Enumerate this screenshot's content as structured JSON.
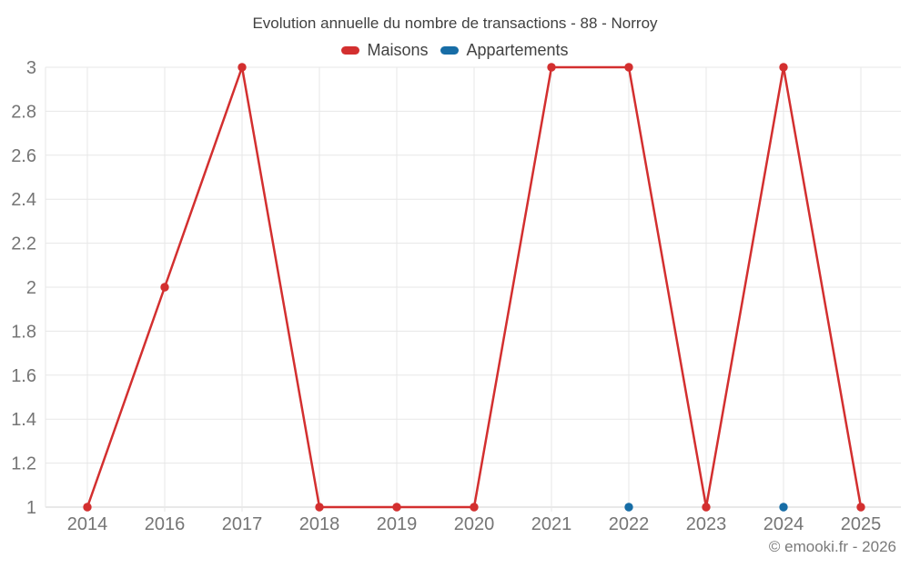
{
  "header": {
    "title": "Evolution annuelle du nombre de transactions - 88 - Norroy"
  },
  "legend": {
    "items": [
      {
        "label": "Maisons",
        "color": "#d32f2f"
      },
      {
        "label": "Appartements",
        "color": "#176da6"
      }
    ]
  },
  "footer": {
    "copyright": "© emooki.fr - 2026"
  },
  "colors": {
    "grid": "#e7e7e7",
    "baseline": "#d2d2d2",
    "tick_label": "#757575",
    "title": "#404040",
    "copyright": "#7a7a7a",
    "background": "#ffffff"
  },
  "chart_data": {
    "type": "line",
    "title": "Evolution annuelle du nombre de transactions - 88 - Norroy",
    "xlabel": "",
    "ylabel": "",
    "grid": true,
    "legend_position": "top",
    "categories": [
      "2014",
      "2016",
      "2017",
      "2018",
      "2019",
      "2020",
      "2021",
      "2022",
      "2023",
      "2024",
      "2025"
    ],
    "series": [
      {
        "name": "Maisons",
        "color": "#d32f2f",
        "line": true,
        "values": [
          1,
          2,
          3,
          1,
          1,
          1,
          3,
          3,
          1,
          3,
          1
        ]
      },
      {
        "name": "Appartements",
        "color": "#176da6",
        "line": true,
        "values": [
          null,
          null,
          null,
          null,
          null,
          null,
          null,
          1,
          null,
          1,
          null
        ]
      }
    ],
    "ylim": [
      1,
      3
    ],
    "yticks": [
      {
        "value": 1,
        "label": "1"
      },
      {
        "value": 1.2,
        "label": "1.2"
      },
      {
        "value": 1.4,
        "label": "1.4"
      },
      {
        "value": 1.6,
        "label": "1.6"
      },
      {
        "value": 1.8,
        "label": "1.8"
      },
      {
        "value": 2,
        "label": "2"
      },
      {
        "value": 2.2,
        "label": "2.2"
      },
      {
        "value": 2.4,
        "label": "2.4"
      },
      {
        "value": 2.6,
        "label": "2.6"
      },
      {
        "value": 2.8,
        "label": "2.8"
      },
      {
        "value": 3,
        "label": "3"
      }
    ]
  }
}
